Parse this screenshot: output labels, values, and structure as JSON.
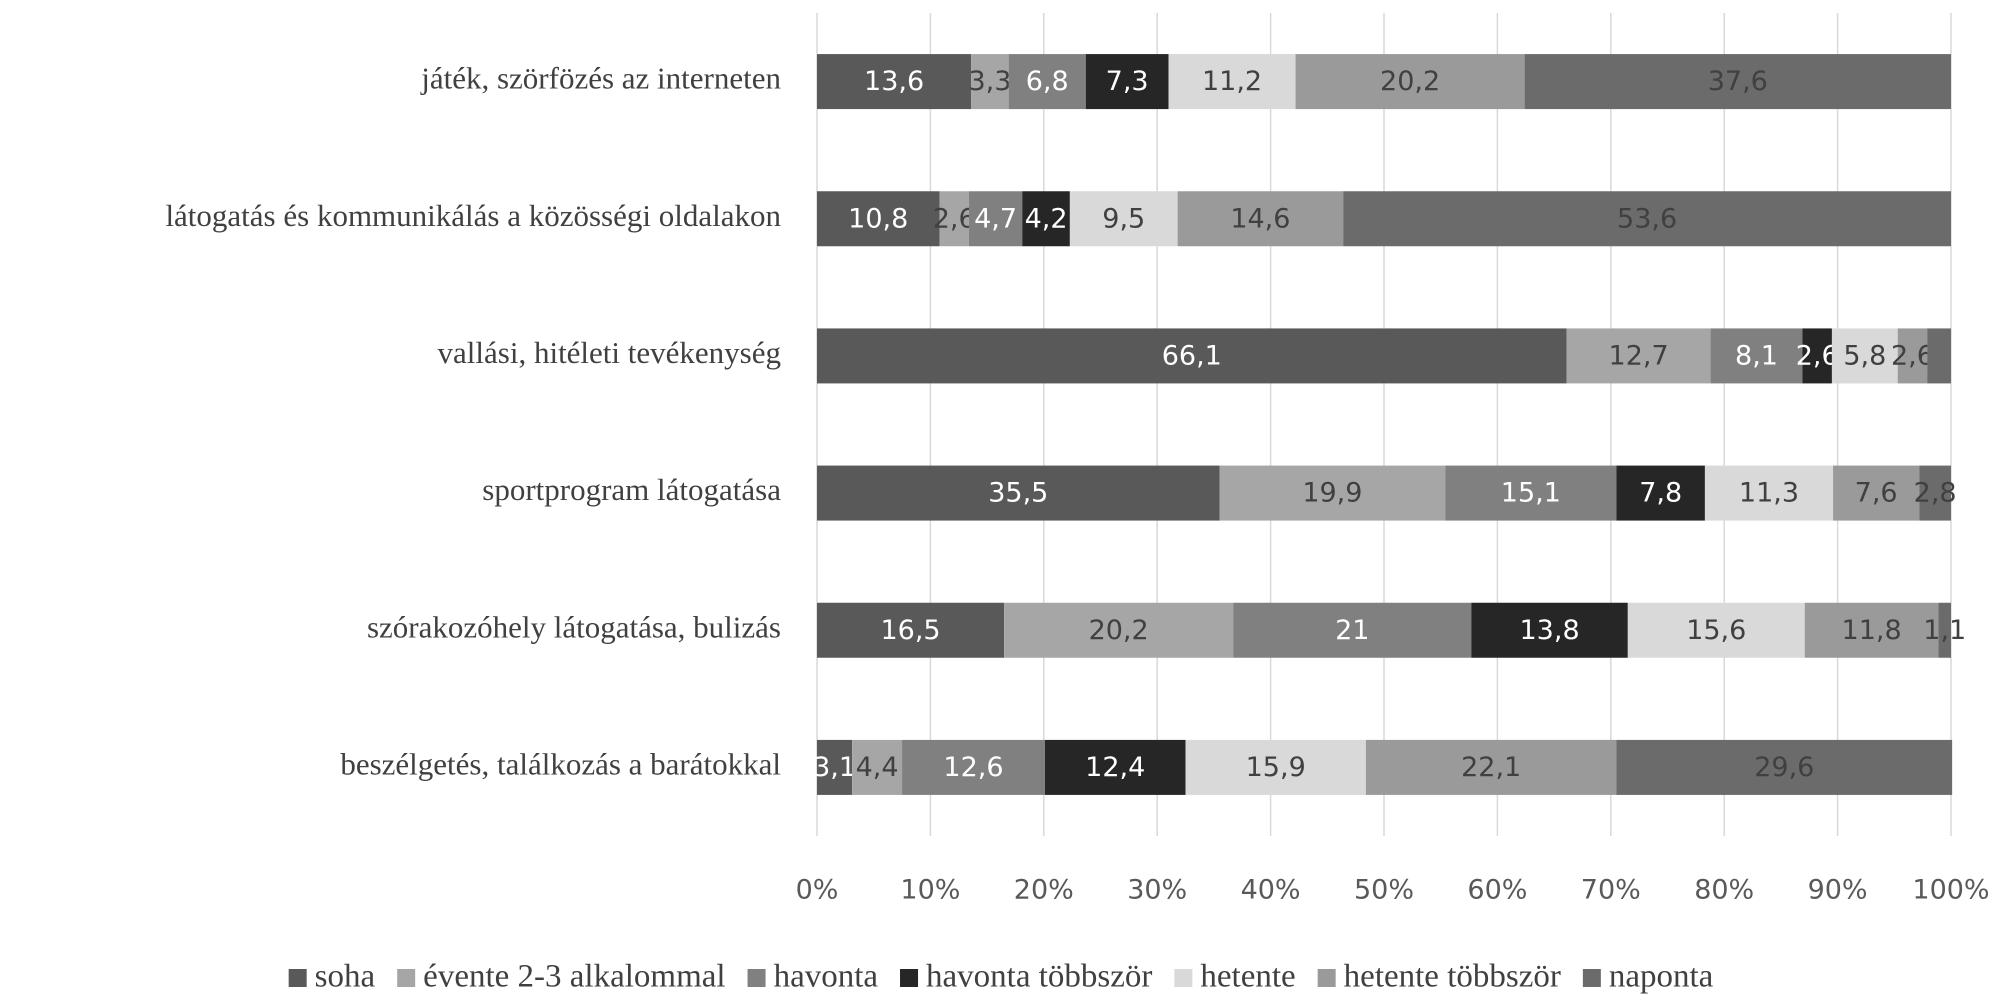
{
  "chart_data": {
    "type": "stacked-bar-horizontal",
    "categories": [
      "játék, szörfözés az interneten",
      "látogatás és kommunikálás a közösségi oldalakon",
      "vallási, hitéleti tevékenység",
      "sportprogram látogatása",
      "szórakozóhely látogatása, bulizás",
      "beszélgetés, találkozás a barátokkal"
    ],
    "series": [
      {
        "name": "soha",
        "color": "#595959",
        "text_color": "#ffffff",
        "values": [
          13.6,
          10.8,
          66.1,
          35.5,
          16.5,
          3.1
        ],
        "value_labels": [
          "13,6",
          "10,8",
          "66,1",
          "35,5",
          "16,5",
          "3,1"
        ]
      },
      {
        "name": "évente 2-3 alkalommal",
        "color": "#a6a6a6",
        "text_color": "#404040",
        "values": [
          3.3,
          2.6,
          12.7,
          19.9,
          20.2,
          4.4
        ],
        "value_labels": [
          "3,3",
          "2,6",
          "12,7",
          "19,9",
          "20,2",
          "4,4"
        ]
      },
      {
        "name": "havonta",
        "color": "#808080",
        "text_color": "#ffffff",
        "values": [
          6.8,
          4.7,
          8.1,
          15.1,
          21,
          12.6
        ],
        "value_labels": [
          "6,8",
          "4,7",
          "8,1",
          "15,1",
          "21",
          "12,6"
        ]
      },
      {
        "name": "havonta többször",
        "color": "#262626",
        "text_color": "#ffffff",
        "values": [
          7.3,
          4.2,
          2.6,
          7.8,
          13.8,
          12.4
        ],
        "value_labels": [
          "7,3",
          "4,2",
          "2,6",
          "7,8",
          "13,8",
          "12,4"
        ]
      },
      {
        "name": "hetente",
        "color": "#d9d9d9",
        "text_color": "#404040",
        "values": [
          11.2,
          9.5,
          5.8,
          11.3,
          15.6,
          15.9
        ],
        "value_labels": [
          "11,2",
          "9,5",
          "5,8",
          "11,3",
          "15,6",
          "15,9"
        ]
      },
      {
        "name": "hetente többször",
        "color": "#9a9a9a",
        "text_color": "#404040",
        "values": [
          20.2,
          14.6,
          2.6,
          7.6,
          11.8,
          22.1
        ],
        "value_labels": [
          "20,2",
          "14,6",
          "2,6",
          "7,6",
          "11,8",
          "22,1"
        ]
      },
      {
        "name": "naponta",
        "color": "#6b6b6b",
        "text_color": "#404040",
        "values": [
          37.6,
          53.6,
          2.1,
          2.8,
          1.1,
          29.6
        ],
        "value_labels": [
          "37,6",
          "53,6",
          null,
          "2,8",
          "1,1",
          "29,6"
        ]
      }
    ],
    "xlim": [
      0,
      100
    ],
    "xticks": [
      {
        "value": 0,
        "label": "0%"
      },
      {
        "value": 10,
        "label": "10%"
      },
      {
        "value": 20,
        "label": "20%"
      },
      {
        "value": 30,
        "label": "30%"
      },
      {
        "value": 40,
        "label": "40%"
      },
      {
        "value": 50,
        "label": "50%"
      },
      {
        "value": 60,
        "label": "60%"
      },
      {
        "value": 70,
        "label": "70%"
      },
      {
        "value": 80,
        "label": "80%"
      },
      {
        "value": 90,
        "label": "90%"
      },
      {
        "value": 100,
        "label": "100%"
      }
    ],
    "grid": true,
    "legend": "bottom"
  }
}
